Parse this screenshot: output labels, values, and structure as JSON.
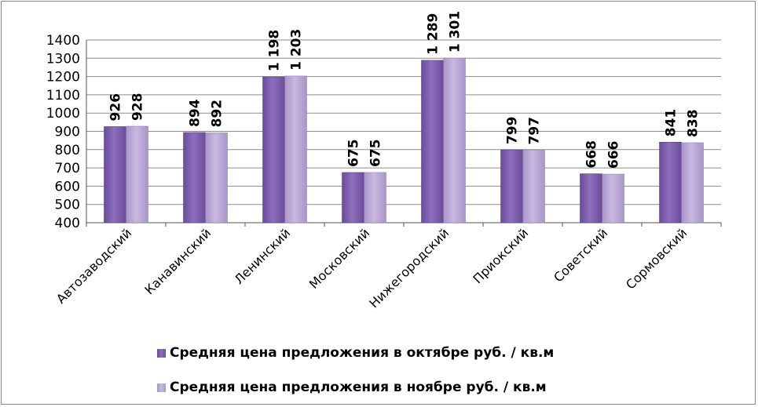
{
  "colors": {
    "series1": "#6b4c9a",
    "series1_light": "#8d70bd",
    "series2": "#a895c9",
    "series2_light": "#c8b9e0",
    "grid": "#8c8c8c",
    "axis": "#555555"
  },
  "chart_data": {
    "type": "bar",
    "categories": [
      "Автозаводский",
      "Канавинский",
      "Ленинский",
      "Московский",
      "Нижегородский",
      "Приокский",
      "Советский",
      "Сормовский"
    ],
    "series": [
      {
        "name": "Средняя цена предложения в октябре руб. / кв.м",
        "values": [
          926,
          894,
          1198,
          675,
          1289,
          799,
          668,
          841
        ],
        "labels": [
          "926",
          "894",
          "1 198",
          "675",
          "1 289",
          "799",
          "668",
          "841"
        ]
      },
      {
        "name": "Средняя цена предложения в ноябре руб. / кв.м",
        "values": [
          928,
          892,
          1203,
          675,
          1301,
          797,
          666,
          838
        ],
        "labels": [
          "928",
          "892",
          "1 203",
          "675",
          "1 301",
          "797",
          "666",
          "838"
        ]
      }
    ],
    "yticks": [
      "400",
      "500",
      "600",
      "700",
      "800",
      "900",
      "1000",
      "1100",
      "1200",
      "1300",
      "1400"
    ],
    "ylim": [
      400,
      1400
    ],
    "grid": true,
    "legend_position": "bottom"
  }
}
